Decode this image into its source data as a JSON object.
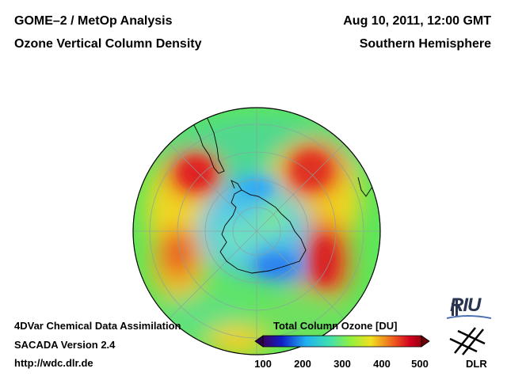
{
  "header": {
    "left_line1": "GOME–2 / MetOp Analysis",
    "left_line2": "Ozone Vertical Column Density",
    "right_line1": "Aug 10, 2011, 12:00 GMT",
    "right_line2": "Southern Hemisphere"
  },
  "footer": {
    "line1": "4DVar Chemical Data Assimilation",
    "line2": "SACADA Version 2.4",
    "line3": "http://wdc.dlr.de"
  },
  "colorbar": {
    "title": "Total Column Ozone [DU]",
    "ticks": [
      "100",
      "200",
      "300",
      "400",
      "500"
    ],
    "colors": [
      "#3a0060",
      "#1020c8",
      "#20b0f0",
      "#40e0b0",
      "#90f040",
      "#f0e020",
      "#f06020",
      "#d00020",
      "#9a0010"
    ]
  },
  "logos": {
    "riu": "RIU",
    "dlr": "DLR"
  }
}
